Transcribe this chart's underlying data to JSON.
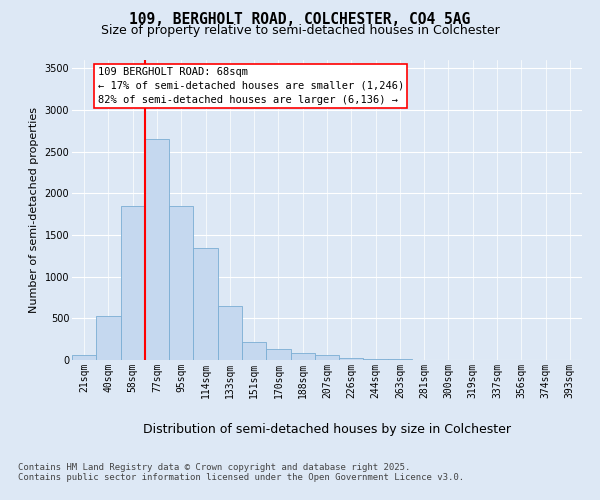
{
  "title_line1": "109, BERGHOLT ROAD, COLCHESTER, CO4 5AG",
  "title_line2": "Size of property relative to semi-detached houses in Colchester",
  "xlabel": "Distribution of semi-detached houses by size in Colchester",
  "ylabel": "Number of semi-detached properties",
  "footer_line1": "Contains HM Land Registry data © Crown copyright and database right 2025.",
  "footer_line2": "Contains public sector information licensed under the Open Government Licence v3.0.",
  "categories": [
    "21sqm",
    "40sqm",
    "58sqm",
    "77sqm",
    "95sqm",
    "114sqm",
    "133sqm",
    "151sqm",
    "170sqm",
    "188sqm",
    "207sqm",
    "226sqm",
    "244sqm",
    "263sqm",
    "281sqm",
    "300sqm",
    "319sqm",
    "337sqm",
    "356sqm",
    "374sqm",
    "393sqm"
  ],
  "values": [
    60,
    530,
    1850,
    2650,
    1850,
    1350,
    650,
    220,
    130,
    80,
    55,
    30,
    18,
    8,
    3,
    2,
    1,
    0,
    0,
    0,
    0
  ],
  "bar_color": "#c5d8ef",
  "bar_edge_color": "#7aadd4",
  "vline_label": "109 BERGHOLT ROAD: 68sqm",
  "vline_color": "red",
  "annotation_smaller": "← 17% of semi-detached houses are smaller (1,246)",
  "annotation_larger": "82% of semi-detached houses are larger (6,136) →",
  "annotation_box_color": "#ffffff",
  "annotation_box_edge": "red",
  "ylim": [
    0,
    3600
  ],
  "yticks": [
    0,
    500,
    1000,
    1500,
    2000,
    2500,
    3000,
    3500
  ],
  "background_color": "#dde8f5",
  "plot_background": "#dde8f5",
  "grid_color": "#ffffff",
  "title_fontsize": 10.5,
  "subtitle_fontsize": 9,
  "ylabel_fontsize": 8,
  "xlabel_fontsize": 9,
  "tick_fontsize": 7,
  "footer_fontsize": 6.5,
  "annotation_fontsize": 7.5
}
